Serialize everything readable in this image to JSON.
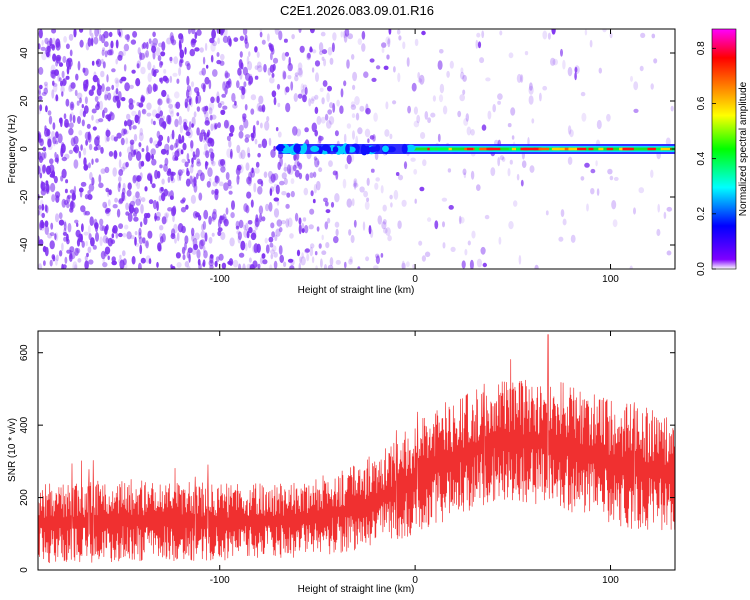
{
  "figure": {
    "title": "C2E1.2026.083.09.01.R16"
  },
  "chart_data": [
    {
      "type": "heatmap",
      "name": "spectrogram",
      "xlabel": "Height of straight line (km)",
      "ylabel": "Frequency (Hz)",
      "xlim": [
        -193,
        133
      ],
      "ylim": [
        -50,
        50
      ],
      "xticks": [
        -100,
        0,
        100
      ],
      "yticks": [
        -40,
        -20,
        0,
        20,
        40
      ],
      "colorbar": {
        "label": "Normalized spectral amplitude",
        "range": [
          0.0,
          0.87
        ],
        "ticks": [
          "0.0",
          "0.2",
          "0.4",
          "0.6",
          "0.8"
        ],
        "tick_values": [
          0.0,
          0.2,
          0.4,
          0.6,
          0.8
        ],
        "colormap": [
          "#ffffff",
          "#7f00ff",
          "#0000ff",
          "#00ffff",
          "#00ff00",
          "#ffff00",
          "#ff8000",
          "#ff0000",
          "#ff00ff"
        ]
      },
      "features": {
        "noise_color": "#7b2cf0",
        "noise_density_by_height": [
          {
            "x": -193,
            "density": 0.9
          },
          {
            "x": -100,
            "density": 0.8
          },
          {
            "x": -60,
            "density": 0.55
          },
          {
            "x": -30,
            "density": 0.35
          },
          {
            "x": 5,
            "density": 0.15
          },
          {
            "x": 133,
            "density": 0.05
          }
        ],
        "carrier_line": {
          "frequency": 0,
          "x_start": -70,
          "x_end": 133,
          "peak_amplitude": 0.85
        }
      }
    },
    {
      "type": "line",
      "name": "snr",
      "xlabel": "Height of straight line (km)",
      "ylabel": "SNR (10 * v/v)",
      "xlim": [
        -193,
        133
      ],
      "ylim": [
        0,
        660
      ],
      "xticks": [
        -100,
        0,
        100
      ],
      "yticks": [
        0,
        200,
        400,
        600
      ],
      "color": "#f03030",
      "envelope": [
        {
          "x": -193,
          "lower": 20,
          "upper": 240
        },
        {
          "x": -150,
          "lower": 20,
          "upper": 250
        },
        {
          "x": -100,
          "lower": 25,
          "upper": 240
        },
        {
          "x": -60,
          "lower": 35,
          "upper": 240
        },
        {
          "x": -30,
          "lower": 50,
          "upper": 290
        },
        {
          "x": -10,
          "lower": 80,
          "upper": 360
        },
        {
          "x": 10,
          "lower": 120,
          "upper": 450
        },
        {
          "x": 40,
          "lower": 190,
          "upper": 520
        },
        {
          "x": 70,
          "lower": 180,
          "upper": 530
        },
        {
          "x": 100,
          "lower": 120,
          "upper": 470
        },
        {
          "x": 133,
          "lower": 100,
          "upper": 430
        }
      ],
      "peak": {
        "x": 68,
        "y": 650
      }
    }
  ]
}
